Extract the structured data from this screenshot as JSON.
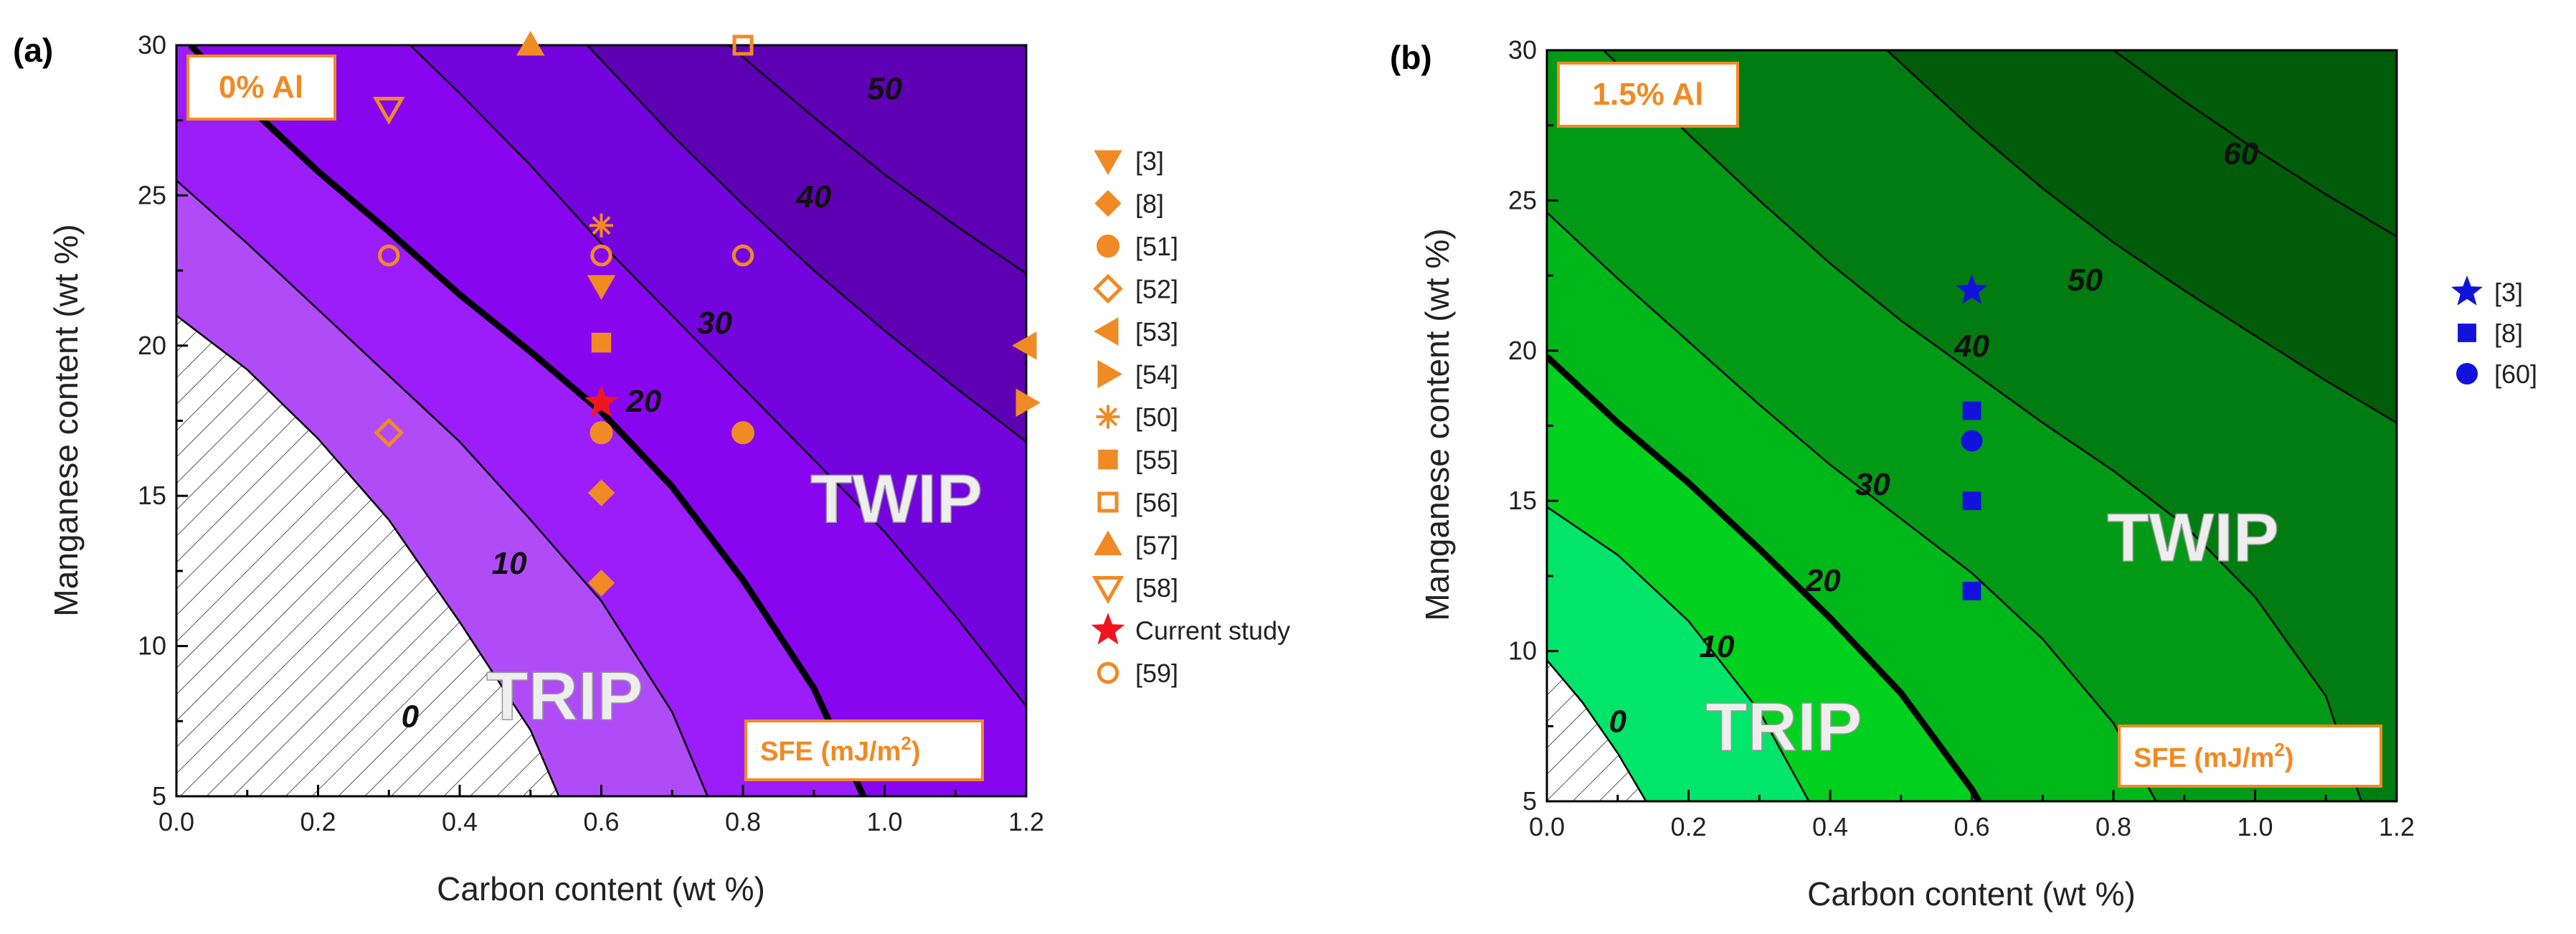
{
  "chart_data": [
    {
      "type": "contour",
      "panel_label": "(a)",
      "title": "0% Al",
      "xlabel": "Carbon content (wt %)",
      "ylabel": "Manganese content (wt %)",
      "xlim": [
        0.0,
        1.2
      ],
      "ylim": [
        5,
        30
      ],
      "xticks": [
        "0.0",
        "0.2",
        "0.4",
        "0.6",
        "0.8",
        "1.0",
        "1.2"
      ],
      "yticks": [
        "5",
        "10",
        "15",
        "20",
        "25",
        "30"
      ],
      "unit_label": {
        "text": "SFE (mJ/m",
        "superscript": "2",
        "suffix": ")"
      },
      "regions": {
        "lower": "TRIP",
        "upper": "TWIP"
      },
      "contour_levels": [
        {
          "level": 0,
          "label": "0",
          "points": [
            [
              0.0,
              21.0
            ],
            [
              0.1,
              19.2
            ],
            [
              0.2,
              16.9
            ],
            [
              0.3,
              14.2
            ],
            [
              0.4,
              10.8
            ],
            [
              0.5,
              7.2
            ],
            [
              0.54,
              5.0
            ]
          ]
        },
        {
          "level": 10,
          "label": "10",
          "points": [
            [
              0.0,
              25.5
            ],
            [
              0.1,
              23.4
            ],
            [
              0.2,
              21.2
            ],
            [
              0.3,
              19.0
            ],
            [
              0.4,
              16.8
            ],
            [
              0.5,
              14.2
            ],
            [
              0.6,
              11.5
            ],
            [
              0.7,
              7.8
            ],
            [
              0.75,
              5.0
            ]
          ]
        },
        {
          "level": 20,
          "label": "20",
          "points": [
            [
              0.02,
              30.0
            ],
            [
              0.1,
              28.0
            ],
            [
              0.2,
              25.8
            ],
            [
              0.3,
              23.8
            ],
            [
              0.4,
              21.7
            ],
            [
              0.5,
              19.8
            ],
            [
              0.6,
              17.8
            ],
            [
              0.7,
              15.3
            ],
            [
              0.8,
              12.2
            ],
            [
              0.9,
              8.6
            ],
            [
              0.97,
              5.0
            ]
          ]
        },
        {
          "level": 30,
          "label": "30",
          "points": [
            [
              0.33,
              30.0
            ],
            [
              0.4,
              28.4
            ],
            [
              0.5,
              26.0
            ],
            [
              0.6,
              23.4
            ],
            [
              0.7,
              21.0
            ],
            [
              0.8,
              18.6
            ],
            [
              0.9,
              16.2
            ],
            [
              1.0,
              13.8
            ],
            [
              1.1,
              11.0
            ],
            [
              1.2,
              8.0
            ]
          ]
        },
        {
          "level": 40,
          "label": "40",
          "points": [
            [
              0.58,
              30.0
            ],
            [
              0.7,
              27.0
            ],
            [
              0.8,
              24.7
            ],
            [
              0.9,
              22.5
            ],
            [
              1.0,
              20.5
            ],
            [
              1.1,
              18.6
            ],
            [
              1.2,
              16.8
            ]
          ]
        },
        {
          "level": 50,
          "label": "50",
          "points": [
            [
              0.78,
              30.0
            ],
            [
              0.9,
              27.6
            ],
            [
              1.0,
              25.7
            ],
            [
              1.1,
              24.0
            ],
            [
              1.2,
              22.4
            ]
          ]
        }
      ],
      "series": [
        {
          "name": "[3]",
          "marker": "triangle-down",
          "x": [
            0.6
          ],
          "y": [
            22
          ]
        },
        {
          "name": "[8]",
          "marker": "diamond",
          "x": [
            0.6,
            0.6
          ],
          "y": [
            15.1,
            12.1
          ]
        },
        {
          "name": "[51]",
          "marker": "circle",
          "x": [
            0.6,
            0.8
          ],
          "y": [
            17.1,
            17.1
          ]
        },
        {
          "name": "[52]",
          "marker": "diamond-open",
          "x": [
            0.3
          ],
          "y": [
            17.1
          ]
        },
        {
          "name": "[53]",
          "marker": "triangle-left",
          "x": [
            1.2
          ],
          "y": [
            20
          ]
        },
        {
          "name": "[54]",
          "marker": "triangle-right",
          "x": [
            1.2
          ],
          "y": [
            18.1
          ]
        },
        {
          "name": "[50]",
          "marker": "asterisk",
          "x": [
            0.6
          ],
          "y": [
            24
          ]
        },
        {
          "name": "[55]",
          "marker": "square",
          "x": [
            0.6
          ],
          "y": [
            20.1
          ]
        },
        {
          "name": "[56]",
          "marker": "square-open",
          "x": [
            0.8
          ],
          "y": [
            30
          ]
        },
        {
          "name": "[57]",
          "marker": "triangle-up",
          "x": [
            0.5
          ],
          "y": [
            30
          ]
        },
        {
          "name": "[58]",
          "marker": "triangle-down-open",
          "x": [
            0.3
          ],
          "y": [
            27.9
          ]
        },
        {
          "name": "Current study",
          "marker": "star",
          "x": [
            0.6
          ],
          "y": [
            18.1
          ]
        },
        {
          "name": "[59]",
          "marker": "circle-open",
          "x": [
            0.3,
            0.6,
            0.8
          ],
          "y": [
            23,
            23,
            23
          ]
        }
      ]
    },
    {
      "type": "contour",
      "panel_label": "(b)",
      "title": "1.5% Al",
      "xlabel": "Carbon content (wt %)",
      "ylabel": "Manganese content (wt %)",
      "xlim": [
        0.0,
        1.2
      ],
      "ylim": [
        5,
        30
      ],
      "xticks": [
        "0.0",
        "0.2",
        "0.4",
        "0.6",
        "0.8",
        "1.0",
        "1.2"
      ],
      "yticks": [
        "5",
        "10",
        "15",
        "20",
        "25",
        "30"
      ],
      "unit_label": {
        "text": "SFE (mJ/m",
        "superscript": "2",
        "suffix": ")"
      },
      "regions": {
        "lower": "TRIP",
        "upper": "TWIP"
      },
      "contour_levels": [
        {
          "level": 0,
          "label": "0",
          "points": [
            [
              0.0,
              9.7
            ],
            [
              0.05,
              8.3
            ],
            [
              0.1,
              6.6
            ],
            [
              0.14,
              5.0
            ]
          ]
        },
        {
          "level": 10,
          "label": "10",
          "points": [
            [
              0.0,
              14.8
            ],
            [
              0.1,
              13.2
            ],
            [
              0.2,
              11.0
            ],
            [
              0.3,
              8.0
            ],
            [
              0.37,
              5.0
            ]
          ]
        },
        {
          "level": 20,
          "label": "20",
          "points": [
            [
              0.0,
              19.8
            ],
            [
              0.1,
              17.6
            ],
            [
              0.2,
              15.6
            ],
            [
              0.3,
              13.4
            ],
            [
              0.4,
              11.1
            ],
            [
              0.5,
              8.6
            ],
            [
              0.6,
              5.4
            ],
            [
              0.61,
              5.0
            ]
          ]
        },
        {
          "level": 30,
          "label": "30",
          "points": [
            [
              0.0,
              24.6
            ],
            [
              0.1,
              22.4
            ],
            [
              0.2,
              20.3
            ],
            [
              0.3,
              18.2
            ],
            [
              0.4,
              16.2
            ],
            [
              0.5,
              14.4
            ],
            [
              0.6,
              12.6
            ],
            [
              0.7,
              10.4
            ],
            [
              0.8,
              7.6
            ],
            [
              0.86,
              5.0
            ]
          ]
        },
        {
          "level": 40,
          "label": "40",
          "points": [
            [
              0.08,
              30.0
            ],
            [
              0.2,
              27.2
            ],
            [
              0.3,
              25.0
            ],
            [
              0.4,
              22.9
            ],
            [
              0.5,
              21.0
            ],
            [
              0.6,
              19.3
            ],
            [
              0.7,
              17.6
            ],
            [
              0.8,
              16.0
            ],
            [
              0.9,
              14.2
            ],
            [
              1.0,
              11.8
            ],
            [
              1.1,
              8.5
            ],
            [
              1.15,
              5.0
            ]
          ]
        },
        {
          "level": 50,
          "label": "50",
          "points": [
            [
              0.48,
              30.0
            ],
            [
              0.6,
              27.4
            ],
            [
              0.7,
              25.4
            ],
            [
              0.8,
              23.6
            ],
            [
              0.9,
              22.0
            ],
            [
              1.0,
              20.5
            ],
            [
              1.1,
              19.0
            ],
            [
              1.2,
              17.6
            ]
          ]
        },
        {
          "level": 60,
          "label": "60",
          "points": [
            [
              0.8,
              30.0
            ],
            [
              0.9,
              28.3
            ],
            [
              1.0,
              26.7
            ],
            [
              1.1,
              25.2
            ],
            [
              1.2,
              23.8
            ]
          ]
        }
      ],
      "series": [
        {
          "name": "[3]",
          "marker": "star",
          "x": [
            0.6
          ],
          "y": [
            22
          ]
        },
        {
          "name": "[8]",
          "marker": "square",
          "x": [
            0.6,
            0.6,
            0.6
          ],
          "y": [
            18,
            15,
            12
          ]
        },
        {
          "name": "[60]",
          "marker": "circle",
          "x": [
            0.6
          ],
          "y": [
            17
          ]
        }
      ]
    }
  ],
  "colors": {
    "panel_a_fills": [
      "#c98bf6",
      "#b04cf7",
      "#9b1dfa",
      "#8806ef",
      "#7404dd",
      "#5e00b4"
    ],
    "panel_b_fills": [
      "#96eda6",
      "#00e56a",
      "#00d11e",
      "#00b71a",
      "#009a16",
      "#007c10",
      "#005c08"
    ],
    "marker_orange": "#f08a24",
    "marker_red": "#f0161f",
    "marker_blue": "#1212dc"
  }
}
